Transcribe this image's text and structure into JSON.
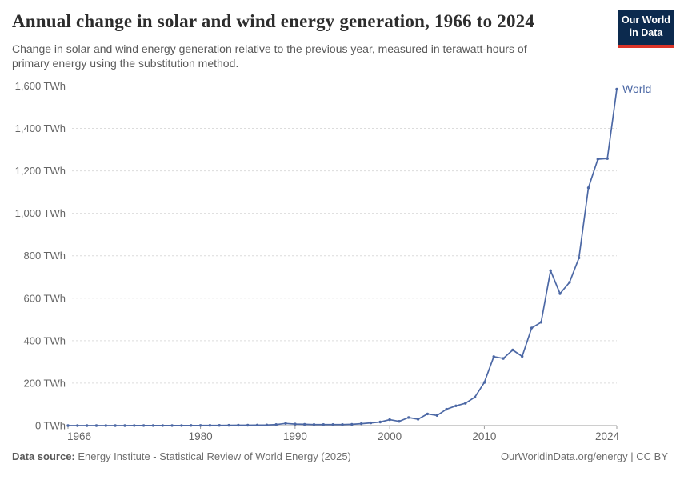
{
  "header": {
    "title": "Annual change in solar and wind energy generation, 1966 to 2024",
    "subtitle_lines": [
      "Change in solar and wind energy generation relative to the previous year, measured in terawatt-hours of",
      "primary energy using the substitution method."
    ]
  },
  "logo": {
    "line1": "Our World",
    "line2": "in Data"
  },
  "footer": {
    "source_prefix": "Data source:",
    "source_text": " Energy Institute - Statistical Review of World Energy (2025)",
    "right_text": "OurWorldinData.org/energy | CC BY"
  },
  "chart_data": {
    "type": "line",
    "title": "Annual change in solar and wind energy generation, 1966 to 2024",
    "xlabel": "",
    "ylabel": "TWh",
    "xlim": [
      1966,
      2024
    ],
    "ylim": [
      0,
      1600
    ],
    "grid": "horizontal-dashed",
    "legend_position": "end-of-line-label",
    "y_ticks": [
      {
        "value": 0,
        "label": "0 TWh"
      },
      {
        "value": 200,
        "label": "200 TWh"
      },
      {
        "value": 400,
        "label": "400 TWh"
      },
      {
        "value": 600,
        "label": "600 TWh"
      },
      {
        "value": 800,
        "label": "800 TWh"
      },
      {
        "value": 1000,
        "label": "1,000 TWh"
      },
      {
        "value": 1200,
        "label": "1,200 TWh"
      },
      {
        "value": 1400,
        "label": "1,400 TWh"
      },
      {
        "value": 1600,
        "label": "1,600 TWh"
      }
    ],
    "x_ticks": [
      {
        "year": 1966,
        "label": "1966",
        "anchor": "start"
      },
      {
        "year": 1980,
        "label": "1980",
        "anchor": "middle"
      },
      {
        "year": 1990,
        "label": "1990",
        "anchor": "middle"
      },
      {
        "year": 2000,
        "label": "2000",
        "anchor": "middle"
      },
      {
        "year": 2010,
        "label": "2010",
        "anchor": "middle"
      },
      {
        "year": 2024,
        "label": "2024",
        "anchor": "end"
      }
    ],
    "series": [
      {
        "name": "World",
        "color": "#4c68a5",
        "x_start": 1966,
        "x_step": 1,
        "values": [
          0,
          0,
          0,
          0.1,
          0.1,
          0.1,
          0.1,
          0.2,
          0.2,
          0.3,
          0.3,
          0.5,
          0.5,
          0.7,
          0.8,
          1,
          1.2,
          1.5,
          2,
          2,
          2.5,
          3,
          5,
          10,
          7,
          6,
          5,
          5,
          5,
          5,
          6,
          9,
          13,
          17,
          28,
          20,
          38,
          30,
          55,
          48,
          77,
          93,
          105,
          134,
          203,
          325,
          316,
          356,
          326,
          460,
          487,
          730,
          622,
          675,
          790,
          1120,
          1255,
          1258,
          1585
        ]
      }
    ],
    "colors": {
      "grid": "#dcdcdc",
      "axis": "#9e9e9e",
      "tick_label": "#666666",
      "series_world": "#4c68a5"
    }
  }
}
